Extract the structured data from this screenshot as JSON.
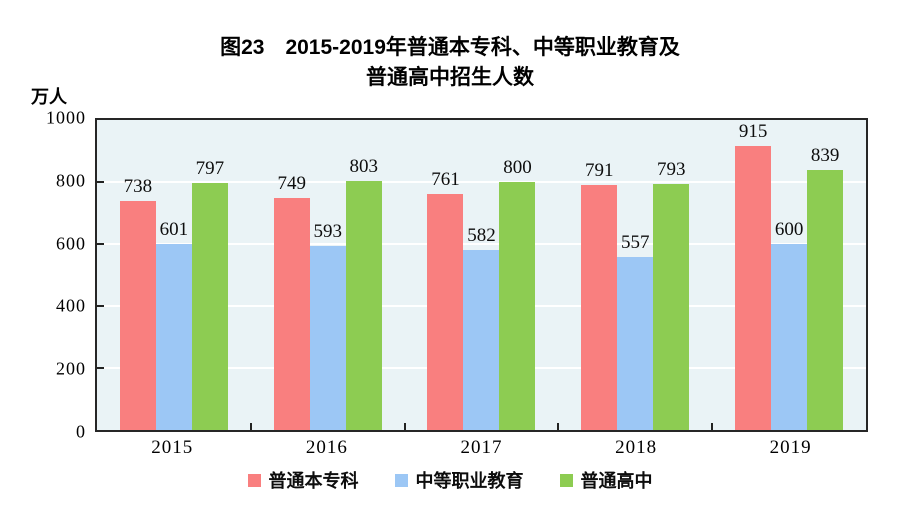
{
  "title": {
    "line1": "图23　2015-2019年普通本专科、中等职业教育及",
    "line2": "普通高中招生人数"
  },
  "chart_data": {
    "type": "bar",
    "title": "图23 2015-2019年普通本专科、中等职业教育及普通高中招生人数",
    "unit_label": "万人",
    "categories": [
      "2015",
      "2016",
      "2017",
      "2018",
      "2019"
    ],
    "series": [
      {
        "name": "普通本专科",
        "color": "#F97F7F",
        "values": [
          738,
          749,
          761,
          791,
          915
        ]
      },
      {
        "name": "中等职业教育",
        "color": "#9CC7F5",
        "values": [
          601,
          593,
          582,
          557,
          600
        ]
      },
      {
        "name": "普通高中",
        "color": "#8DCC52",
        "values": [
          797,
          803,
          800,
          793,
          839
        ]
      }
    ],
    "ylim": [
      0,
      1000
    ],
    "yticks": [
      0,
      200,
      400,
      600,
      800,
      1000
    ],
    "grid": "horizontal-white-lines",
    "legend_position": "bottom",
    "plot_bg": "#EAF3F6",
    "border_color": "#262626"
  }
}
